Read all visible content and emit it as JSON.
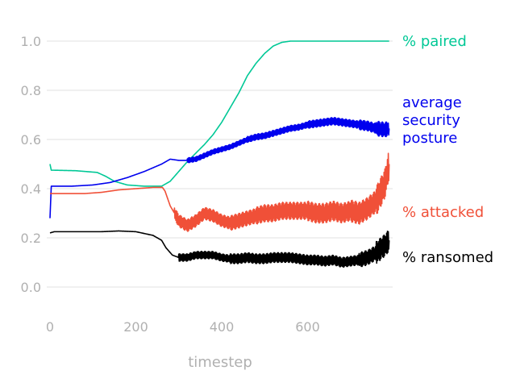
{
  "chart_data": {
    "type": "line",
    "title": "",
    "xlabel": "timestep",
    "ylabel": "",
    "xlim": [
      0,
      800
    ],
    "ylim": [
      -0.1,
      1.08
    ],
    "x_ticks": [
      0,
      200,
      400,
      600
    ],
    "y_ticks": [
      0.0,
      0.2,
      0.4,
      0.6,
      0.8,
      1.0
    ],
    "x_tick_labels": [
      "0",
      "200",
      "400",
      "600"
    ],
    "y_tick_labels": [
      "0.0",
      "0.2",
      "0.4",
      "0.6",
      "0.8",
      "1.0"
    ],
    "grid": "horizontal",
    "legend": "direct labels at right end of lines",
    "series": [
      {
        "name": "% paired",
        "color": "#00c896",
        "label_lines": [
          "% paired"
        ],
        "x": [
          0,
          3,
          10,
          60,
          110,
          130,
          150,
          180,
          220,
          260,
          280,
          300,
          320,
          340,
          360,
          380,
          400,
          420,
          440,
          460,
          480,
          500,
          520,
          540,
          560,
          580,
          600,
          650,
          700,
          790
        ],
        "y": [
          0.5,
          0.475,
          0.475,
          0.473,
          0.466,
          0.45,
          0.43,
          0.415,
          0.41,
          0.41,
          0.43,
          0.47,
          0.51,
          0.545,
          0.58,
          0.62,
          0.67,
          0.73,
          0.79,
          0.86,
          0.91,
          0.95,
          0.98,
          0.995,
          1.0,
          1.0,
          1.0,
          1.0,
          1.0,
          1.0
        ],
        "noise": []
      },
      {
        "name": "average security posture",
        "color": "#0000ee",
        "label_lines": [
          "average",
          "security",
          "posture"
        ],
        "x": [
          0,
          3,
          10,
          50,
          100,
          140,
          180,
          220,
          260,
          280,
          300,
          320,
          340,
          360,
          380,
          400,
          420,
          440,
          460,
          480,
          500,
          520,
          540,
          560,
          580,
          600,
          620,
          640,
          660,
          680,
          700,
          720,
          740,
          760,
          780,
          790
        ],
        "y": [
          0.28,
          0.41,
          0.41,
          0.41,
          0.415,
          0.425,
          0.445,
          0.47,
          0.5,
          0.52,
          0.515,
          0.515,
          0.52,
          0.535,
          0.55,
          0.56,
          0.57,
          0.585,
          0.6,
          0.61,
          0.615,
          0.625,
          0.635,
          0.645,
          0.65,
          0.66,
          0.665,
          0.67,
          0.675,
          0.67,
          0.665,
          0.66,
          0.655,
          0.645,
          0.64,
          0.645
        ],
        "noise": [
          [
            0,
            320,
            0.0
          ],
          [
            320,
            460,
            0.01
          ],
          [
            460,
            600,
            0.012
          ],
          [
            600,
            720,
            0.015
          ],
          [
            720,
            760,
            0.02
          ],
          [
            760,
            790,
            0.03
          ]
        ]
      },
      {
        "name": "% attacked",
        "color": "#f05038",
        "label_lines": [
          "% attacked"
        ],
        "x": [
          0,
          10,
          80,
          120,
          160,
          200,
          240,
          262,
          268,
          280,
          300,
          320,
          340,
          360,
          380,
          400,
          420,
          440,
          460,
          480,
          500,
          520,
          540,
          560,
          580,
          600,
          620,
          640,
          660,
          680,
          700,
          720,
          740,
          760,
          780,
          790
        ],
        "y": [
          0.38,
          0.38,
          0.38,
          0.385,
          0.395,
          0.4,
          0.405,
          0.405,
          0.39,
          0.33,
          0.27,
          0.25,
          0.27,
          0.3,
          0.29,
          0.27,
          0.26,
          0.27,
          0.28,
          0.29,
          0.3,
          0.3,
          0.31,
          0.31,
          0.31,
          0.31,
          0.3,
          0.3,
          0.31,
          0.3,
          0.31,
          0.3,
          0.32,
          0.35,
          0.42,
          0.5
        ],
        "noise": [
          [
            0,
            290,
            0.0
          ],
          [
            290,
            420,
            0.025
          ],
          [
            420,
            480,
            0.03
          ],
          [
            480,
            600,
            0.035
          ],
          [
            600,
            700,
            0.04
          ],
          [
            700,
            760,
            0.045
          ],
          [
            760,
            790,
            0.06
          ]
        ]
      },
      {
        "name": "% ransomed",
        "color": "#000000",
        "label_lines": [
          "% ransomed"
        ],
        "x": [
          0,
          10,
          60,
          120,
          160,
          200,
          240,
          260,
          270,
          285,
          300,
          320,
          340,
          360,
          380,
          400,
          420,
          440,
          460,
          480,
          500,
          520,
          540,
          560,
          580,
          600,
          620,
          640,
          660,
          680,
          700,
          720,
          740,
          760,
          780,
          790
        ],
        "y": [
          0.22,
          0.225,
          0.225,
          0.225,
          0.228,
          0.225,
          0.21,
          0.19,
          0.16,
          0.13,
          0.12,
          0.12,
          0.13,
          0.13,
          0.13,
          0.12,
          0.115,
          0.115,
          0.12,
          0.115,
          0.115,
          0.12,
          0.12,
          0.12,
          0.115,
          0.11,
          0.11,
          0.105,
          0.11,
          0.1,
          0.105,
          0.11,
          0.12,
          0.14,
          0.17,
          0.19
        ],
        "noise": [
          [
            0,
            300,
            0.0
          ],
          [
            300,
            420,
            0.015
          ],
          [
            420,
            600,
            0.02
          ],
          [
            600,
            720,
            0.02
          ],
          [
            720,
            760,
            0.03
          ],
          [
            760,
            790,
            0.045
          ]
        ]
      }
    ]
  }
}
